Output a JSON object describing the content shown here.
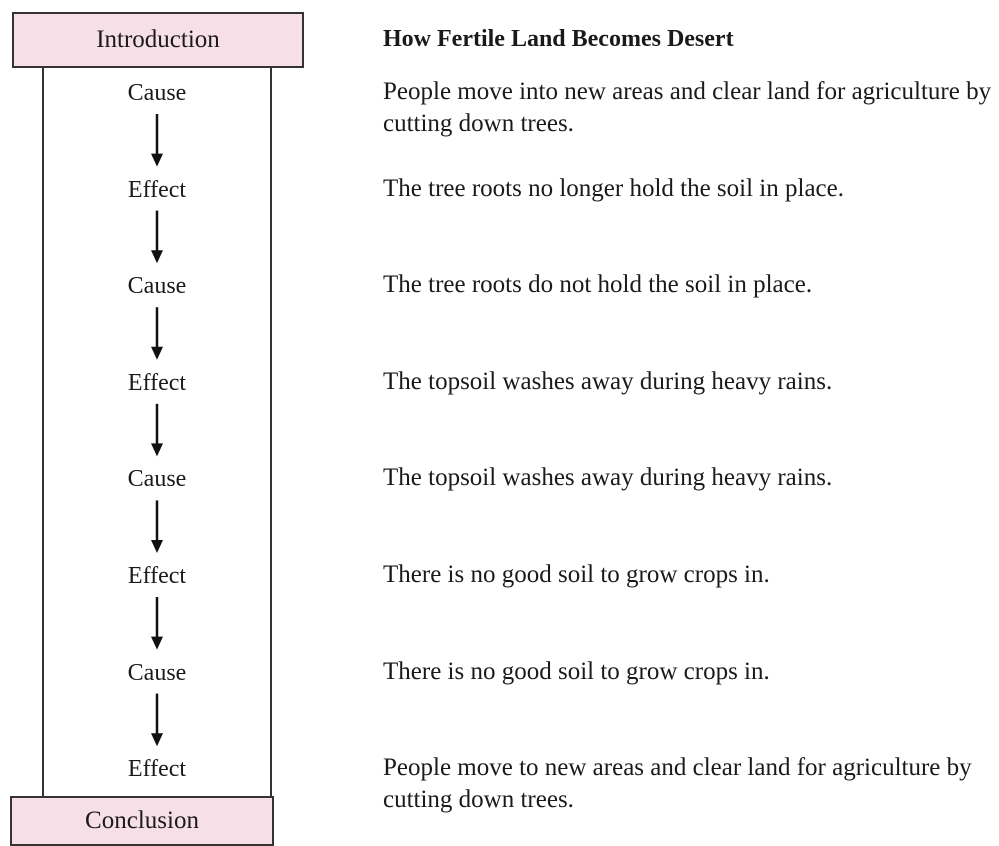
{
  "intro": "Introduction",
  "conclusion": "Conclusion",
  "title": "How Fertile Land Becomes Desert",
  "steps": [
    {
      "label": "Cause",
      "text": "People move into new areas and clear land for agriculture by cutting down trees."
    },
    {
      "label": "Effect",
      "text": "The tree roots no longer hold the soil in place."
    },
    {
      "label": "Cause",
      "text": "The tree roots do not hold the soil in place."
    },
    {
      "label": "Effect",
      "text": "The topsoil washes away during heavy rains."
    },
    {
      "label": "Cause",
      "text": "The topsoil washes away during heavy rains."
    },
    {
      "label": "Effect",
      "text": "There is no good soil to grow crops in."
    },
    {
      "label": "Cause",
      "text": "There is no good soil to grow crops in."
    },
    {
      "label": "Effect",
      "text": "People move to new areas and clear land for agriculture by cutting down trees."
    }
  ]
}
